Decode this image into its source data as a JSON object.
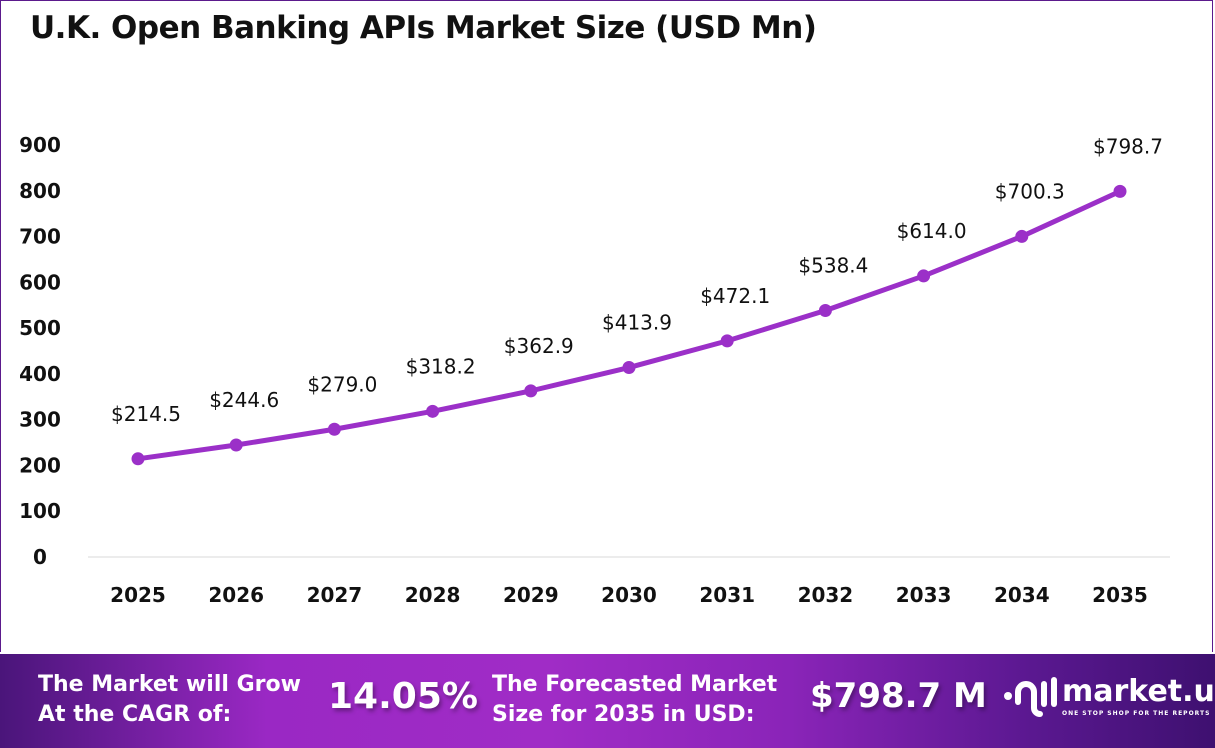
{
  "chart_data": {
    "type": "line",
    "title": "U.K. Open Banking APIs Market Size (USD Mn)",
    "categories": [
      "2025",
      "2026",
      "2027",
      "2028",
      "2029",
      "2030",
      "2031",
      "2032",
      "2033",
      "2034",
      "2035"
    ],
    "values": [
      214.5,
      244.6,
      279.0,
      318.2,
      362.9,
      413.9,
      472.1,
      538.4,
      614.0,
      700.3,
      798.7
    ],
    "data_labels": [
      "$214.5",
      "$244.6",
      "$279.0",
      "$318.2",
      "$362.9",
      "$413.9",
      "$472.1",
      "$538.4",
      "$614.0",
      "$700.3",
      "$798.7"
    ],
    "ylim": [
      0,
      900
    ],
    "yticks": [
      "0",
      "100",
      "200",
      "300",
      "400",
      "500",
      "600",
      "700",
      "800",
      "900"
    ],
    "xlabel": "",
    "ylabel": "",
    "grid": false,
    "line_color": "#9b30c8"
  },
  "footer": {
    "cagr_label_line1": "The Market will Grow",
    "cagr_label_line2": "At the CAGR of:",
    "cagr_value": "14.05%",
    "forecast_label_line1": "The Forecasted Market",
    "forecast_label_line2": "Size for 2035 in USD:",
    "forecast_value": "$798.7 M",
    "brand_name": "market.us",
    "brand_tagline": "ONE STOP SHOP FOR THE REPORTS"
  }
}
